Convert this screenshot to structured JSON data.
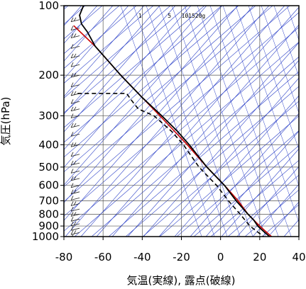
{
  "chart_data": {
    "type": "line",
    "chart_kind": "skew-T log-p sounding",
    "xlabel": "気温(実線), 露点(破線)",
    "ylabel": "気圧(hPa)",
    "xlim": [
      -80,
      40
    ],
    "ylim": [
      1000,
      100
    ],
    "y_scale": "log",
    "x_ticks": [
      "-80",
      "-60",
      "-40",
      "-20",
      "0",
      "20",
      "40"
    ],
    "x_tick_values": [
      -80,
      -60,
      -40,
      -20,
      0,
      20,
      40
    ],
    "y_ticks": [
      "100",
      "200",
      "300",
      "400",
      "500",
      "600",
      "700",
      "800",
      "900",
      "1000"
    ],
    "y_tick_values": [
      100,
      200,
      300,
      400,
      500,
      600,
      700,
      800,
      900,
      1000
    ],
    "mixing_ratio_labels": [
      "1",
      "5",
      "10",
      "15",
      "20g"
    ],
    "mixing_ratio_values": [
      1,
      5,
      10,
      15,
      20
    ],
    "grid": true,
    "colors": {
      "temperature": "#000000",
      "reference_profile": "#cc0000",
      "dewpoint": "#000000",
      "guide_lines": "#2a3fc7",
      "grid": "#555555"
    },
    "series": [
      {
        "key": "temperature",
        "style": "solid",
        "points": [
          {
            "p": 100,
            "t": -70
          },
          {
            "p": 110,
            "t": -72
          },
          {
            "p": 120,
            "t": -71
          },
          {
            "p": 130,
            "t": -68
          },
          {
            "p": 150,
            "t": -64
          },
          {
            "p": 175,
            "t": -57
          },
          {
            "p": 200,
            "t": -51
          },
          {
            "p": 250,
            "t": -40
          },
          {
            "p": 300,
            "t": -30
          },
          {
            "p": 350,
            "t": -22
          },
          {
            "p": 400,
            "t": -16
          },
          {
            "p": 500,
            "t": -7
          },
          {
            "p": 600,
            "t": 2
          },
          {
            "p": 700,
            "t": 8
          },
          {
            "p": 800,
            "t": 14
          },
          {
            "p": 850,
            "t": 17
          },
          {
            "p": 900,
            "t": 19
          },
          {
            "p": 950,
            "t": 22
          },
          {
            "p": 1000,
            "t": 25
          }
        ]
      },
      {
        "key": "reference_profile",
        "style": "solid",
        "points": [
          {
            "p": 122,
            "t": -75
          },
          {
            "p": 150,
            "t": -64
          },
          {
            "p": 200,
            "t": -51
          },
          {
            "p": 250,
            "t": -40
          },
          {
            "p": 300,
            "t": -31
          },
          {
            "p": 400,
            "t": -17
          },
          {
            "p": 500,
            "t": -7
          },
          {
            "p": 600,
            "t": 2
          },
          {
            "p": 700,
            "t": 9
          },
          {
            "p": 800,
            "t": 14
          },
          {
            "p": 900,
            "t": 20
          },
          {
            "p": 1000,
            "t": 26
          }
        ]
      },
      {
        "key": "dewpoint",
        "style": "dashed",
        "points": [
          {
            "p": 240,
            "t": -73
          },
          {
            "p": 240,
            "t": -48
          },
          {
            "p": 260,
            "t": -45
          },
          {
            "p": 280,
            "t": -42
          },
          {
            "p": 300,
            "t": -34
          },
          {
            "p": 350,
            "t": -25
          },
          {
            "p": 400,
            "t": -19
          },
          {
            "p": 500,
            "t": -11
          },
          {
            "p": 600,
            "t": -2
          },
          {
            "p": 700,
            "t": 4
          },
          {
            "p": 800,
            "t": 10
          },
          {
            "p": 900,
            "t": 15
          },
          {
            "p": 1000,
            "t": 22
          }
        ]
      }
    ],
    "wind_barbs_pressures": [
      115,
      125,
      135,
      150,
      165,
      180,
      200,
      220,
      240,
      260,
      280,
      300,
      330,
      360,
      400,
      440,
      480,
      520,
      560,
      600,
      640,
      680,
      720,
      760,
      800,
      840,
      880,
      920,
      960,
      1000
    ]
  }
}
